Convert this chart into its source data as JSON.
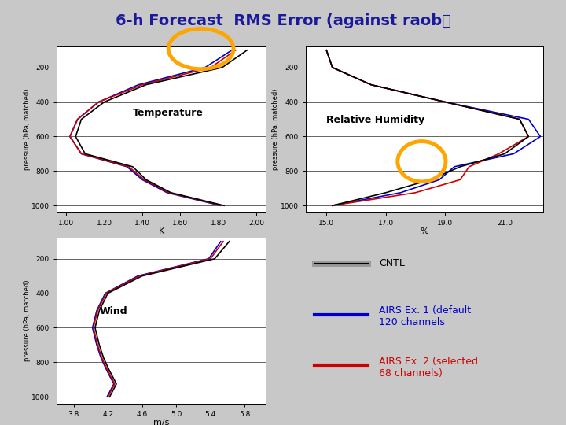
{
  "title_text": "6-h Forecast  RMS Error (against raob）",
  "background_color": "#c8c8c8",
  "plot_bg": "#ffffff",
  "temp_xlim": [
    0.95,
    2.05
  ],
  "temp_xticks": [
    1.0,
    1.2,
    1.4,
    1.6,
    1.8,
    2.0
  ],
  "temp_xlabel": "K",
  "rh_xlim": [
    14.3,
    22.3
  ],
  "rh_xticks": [
    15.0,
    17.0,
    19.0,
    21.0
  ],
  "rh_xlabel": "%",
  "wind_xlim": [
    3.6,
    6.05
  ],
  "wind_xticks": [
    3.8,
    4.2,
    4.6,
    5.0,
    5.4,
    5.8
  ],
  "wind_xlabel": "m/s",
  "ylabel": "pressure (hPa, matched)",
  "yticks": [
    200,
    400,
    600,
    800,
    1000
  ],
  "cntl_color": "#000000",
  "airs1_color": "#0000cc",
  "airs2_color": "#cc0000",
  "orange_color": "#FFA500"
}
